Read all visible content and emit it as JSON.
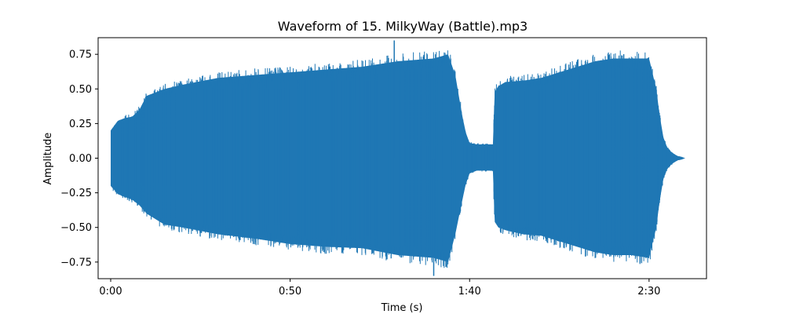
{
  "chart_data": {
    "type": "line",
    "title": "Waveform of 15. MilkyWay (Battle).mp3",
    "xlabel": "Time (s)",
    "ylabel": "Amplitude",
    "xlim": [
      -3.5,
      166
    ],
    "ylim": [
      -0.87,
      0.87
    ],
    "x_ticks": [
      {
        "value": 0,
        "label": "0:00"
      },
      {
        "value": 50,
        "label": "0:50"
      },
      {
        "value": 100,
        "label": "1:40"
      },
      {
        "value": 150,
        "label": "2:30"
      }
    ],
    "y_ticks": [
      {
        "value": 0.75,
        "label": "0.75"
      },
      {
        "value": 0.5,
        "label": "0.50"
      },
      {
        "value": 0.25,
        "label": "0.25"
      },
      {
        "value": 0.0,
        "label": "0.00"
      },
      {
        "value": -0.25,
        "label": "−0.25"
      },
      {
        "value": -0.5,
        "label": "−0.50"
      },
      {
        "value": -0.75,
        "label": "−0.75"
      }
    ],
    "grid": false,
    "series": [
      {
        "color": "#1f77b4",
        "envelope": {
          "time": [
            0,
            2,
            4,
            6,
            8,
            10,
            15,
            20,
            30,
            40,
            50,
            60,
            70,
            80,
            90,
            94,
            96,
            98,
            99,
            100,
            102,
            104,
            106,
            106.5,
            107,
            108,
            110,
            115,
            120,
            125,
            130,
            135,
            140,
            145,
            150,
            152,
            153,
            154,
            155,
            156,
            157,
            158,
            159,
            160
          ],
          "upper": [
            0.2,
            0.27,
            0.29,
            0.3,
            0.35,
            0.45,
            0.5,
            0.53,
            0.58,
            0.6,
            0.62,
            0.64,
            0.66,
            0.7,
            0.72,
            0.75,
            0.6,
            0.3,
            0.18,
            0.11,
            0.1,
            0.1,
            0.1,
            0.1,
            0.48,
            0.52,
            0.55,
            0.56,
            0.58,
            0.62,
            0.66,
            0.7,
            0.72,
            0.72,
            0.72,
            0.5,
            0.3,
            0.15,
            0.08,
            0.05,
            0.03,
            0.015,
            0.01,
            0.0
          ],
          "lower": [
            -0.2,
            -0.26,
            -0.28,
            -0.3,
            -0.34,
            -0.4,
            -0.48,
            -0.5,
            -0.55,
            -0.58,
            -0.62,
            -0.64,
            -0.65,
            -0.7,
            -0.72,
            -0.75,
            -0.55,
            -0.3,
            -0.18,
            -0.11,
            -0.09,
            -0.09,
            -0.09,
            -0.09,
            -0.46,
            -0.5,
            -0.52,
            -0.55,
            -0.56,
            -0.6,
            -0.64,
            -0.68,
            -0.7,
            -0.7,
            -0.72,
            -0.5,
            -0.3,
            -0.15,
            -0.08,
            -0.05,
            -0.03,
            -0.015,
            -0.01,
            0.0
          ]
        },
        "peaks": {
          "max": {
            "time": 79,
            "value": 0.85
          },
          "min": {
            "time": 90,
            "value": -0.85
          }
        }
      }
    ]
  }
}
